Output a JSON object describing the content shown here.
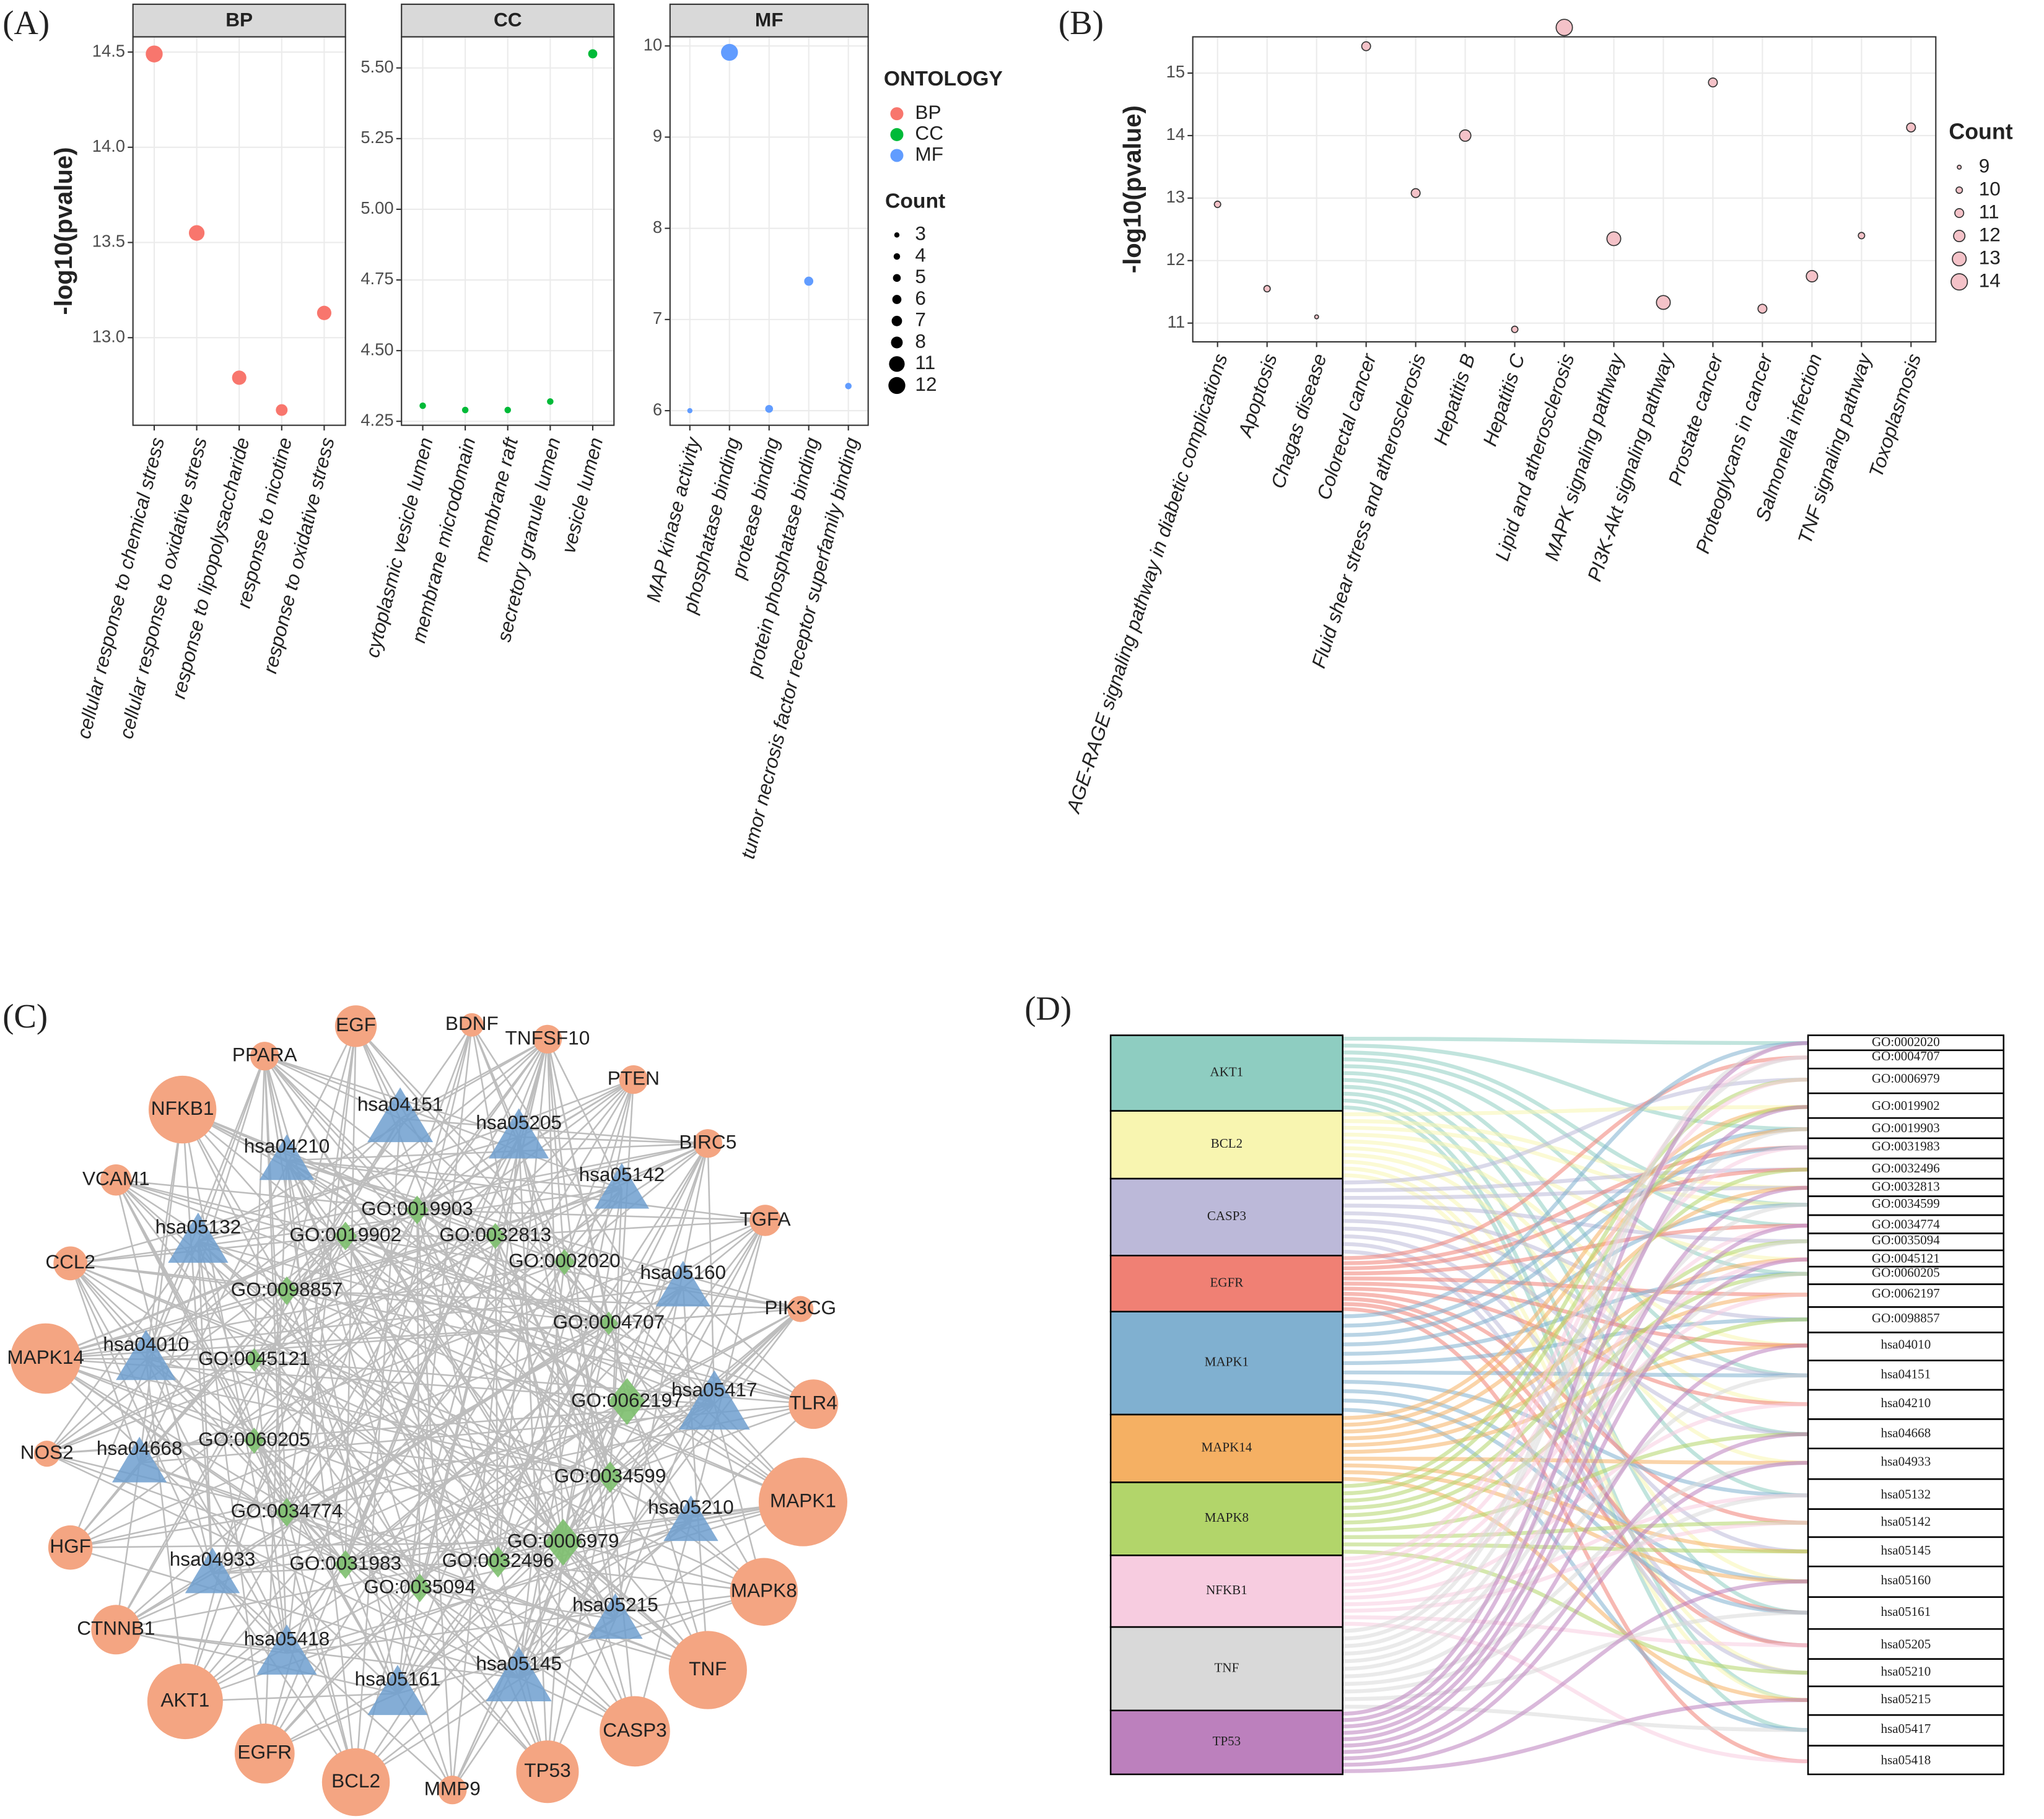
{
  "panel_labels": [
    "(A)",
    "(B)",
    "(C)",
    "(D)"
  ],
  "chart_data": [
    {
      "type": "scatter",
      "title": "BP",
      "y_label": "-log10(pvalue)",
      "color": "#F8766D",
      "categories": [
        "cellular response to chemical stress",
        "cellular response to oxidative stress",
        "response to lipopolysaccharide",
        "response to nicotine",
        "response to oxidative stress"
      ],
      "values": [
        14.49,
        13.55,
        12.79,
        12.62,
        13.13
      ],
      "sizes": [
        12,
        11,
        10,
        8,
        10
      ],
      "ylim": [
        12.54,
        14.58
      ],
      "yticks": [
        {
          "value": 13.0,
          "label": "13.0"
        },
        {
          "value": 13.5,
          "label": "13.5"
        },
        {
          "value": 14.0,
          "label": "14.0"
        },
        {
          "value": 14.5,
          "label": "14.5"
        }
      ],
      "grid": true,
      "legend_title": "ONTOLOGY",
      "size_legend": {
        "title": "Count",
        "values": [
          3,
          4,
          5,
          6,
          7,
          8,
          11,
          12
        ]
      }
    },
    {
      "type": "scatter",
      "title": "CC",
      "color": "#00BA38",
      "categories": [
        "cytoplasmic vesicle lumen",
        "membrane microdomain",
        "membrane raft",
        "secretory granule lumen",
        "vesicle lumen"
      ],
      "values": [
        4.305,
        4.29,
        4.29,
        4.32,
        5.55
      ],
      "sizes": [
        4,
        4,
        4,
        4,
        6
      ],
      "ylim": [
        4.236,
        5.61
      ],
      "yticks": [
        4.25,
        {
          "value": 4.5,
          "label": "4.50"
        },
        4.75,
        {
          "value": 5.0,
          "label": "5.00"
        },
        5.25,
        {
          "value": 5.5,
          "label": "5.50"
        }
      ],
      "grid": true
    },
    {
      "type": "scatter",
      "title": "MF",
      "color": "#619CFF",
      "categories": [
        "MAP kinase activity",
        "phosphatase binding",
        "protease binding",
        "protein phosphatase binding",
        "tumor necrosis factor receptor superfamily binding"
      ],
      "values": [
        6.0,
        9.93,
        6.02,
        7.42,
        6.27
      ],
      "sizes": [
        3,
        12,
        5,
        6,
        4
      ],
      "ylim": [
        5.84,
        10.1
      ],
      "yticks": [
        6,
        7,
        8,
        9,
        10
      ],
      "grid": true
    },
    {
      "type": "scatter",
      "y_label": "-log10(pvalue)",
      "color": "#F4C2C8",
      "categories": [
        "AGE-RAGE signaling pathway in diabetic complications",
        "Apoptosis",
        "Chagas disease",
        "Colorectal cancer",
        "Fluid shear stress and atherosclerosis",
        "Hepatitis B",
        "Hepatitis C",
        "Lipid and atherosclerosis",
        "MAPK signaling pathway",
        "PI3K-Akt signaling pathway",
        "Prostate cancer",
        "Proteoglycans in cancer",
        "Salmonella infection",
        "TNF signaling pathway",
        "Toxoplasmosis"
      ],
      "values": [
        12.9,
        11.55,
        11.1,
        15.43,
        13.08,
        14.0,
        10.9,
        15.73,
        12.35,
        11.33,
        14.85,
        11.23,
        11.75,
        12.4,
        14.13
      ],
      "sizes": [
        10,
        10,
        9,
        11,
        11,
        12,
        10,
        14,
        13,
        13,
        11,
        11,
        12,
        10,
        11
      ],
      "ylim": [
        10.7,
        15.58
      ],
      "yticks": [
        11,
        12,
        13,
        14,
        15
      ],
      "grid": true,
      "size_legend": {
        "title": "Count",
        "values": [
          9,
          10,
          11,
          12,
          13,
          14
        ]
      }
    }
  ],
  "network": {
    "genes": [
      "EGF",
      "BDNF",
      "TNFSF10",
      "PPARA",
      "PTEN",
      "NFKB1",
      "BIRC5",
      "VCAM1",
      "TGFA",
      "CCL2",
      "PIK3CG",
      "MAPK14",
      "TLR4",
      "NOS2",
      "MAPK1",
      "HGF",
      "MAPK8",
      "CTNNB1",
      "TNF",
      "AKT1",
      "CASP3",
      "EGFR",
      "BCL2",
      "MMP9",
      "TP53"
    ],
    "pathways": [
      "hsa04151",
      "hsa05205",
      "hsa04210",
      "hsa05142",
      "hsa05132",
      "hsa05160",
      "hsa04010",
      "hsa05417",
      "hsa04668",
      "hsa05210",
      "hsa04933",
      "hsa05215",
      "hsa05418",
      "hsa05161",
      "hsa05145"
    ],
    "go_terms": [
      "GO:0019903",
      "GO:0019902",
      "GO:0032813",
      "GO:0002020",
      "GO:0098857",
      "GO:0004707",
      "GO:0045121",
      "GO:0062197",
      "GO:0060205",
      "GO:0034599",
      "GO:0034774",
      "GO:0006979",
      "GO:0031983",
      "GO:0032496",
      "GO:0035094"
    ]
  },
  "sankey": {
    "sources": [
      "AKT1",
      "BCL2",
      "CASP3",
      "EGFR",
      "MAPK1",
      "MAPK14",
      "MAPK8",
      "NFKB1",
      "TNF",
      "TP53"
    ],
    "targets": [
      "GO:0002020",
      "GO:0004707",
      "GO:0006979",
      "GO:0019902",
      "GO:0019903",
      "GO:0031983",
      "GO:0032496",
      "GO:0032813",
      "GO:0034599",
      "GO:0034774",
      "GO:0035094",
      "GO:0045121",
      "GO:0060205",
      "GO:0062197",
      "GO:0098857",
      "hsa04010",
      "hsa04151",
      "hsa04210",
      "hsa04668",
      "hsa04933",
      "hsa05132",
      "hsa05142",
      "hsa05145",
      "hsa05160",
      "hsa05161",
      "hsa05205",
      "hsa05210",
      "hsa05215",
      "hsa05417",
      "hsa05418"
    ]
  }
}
